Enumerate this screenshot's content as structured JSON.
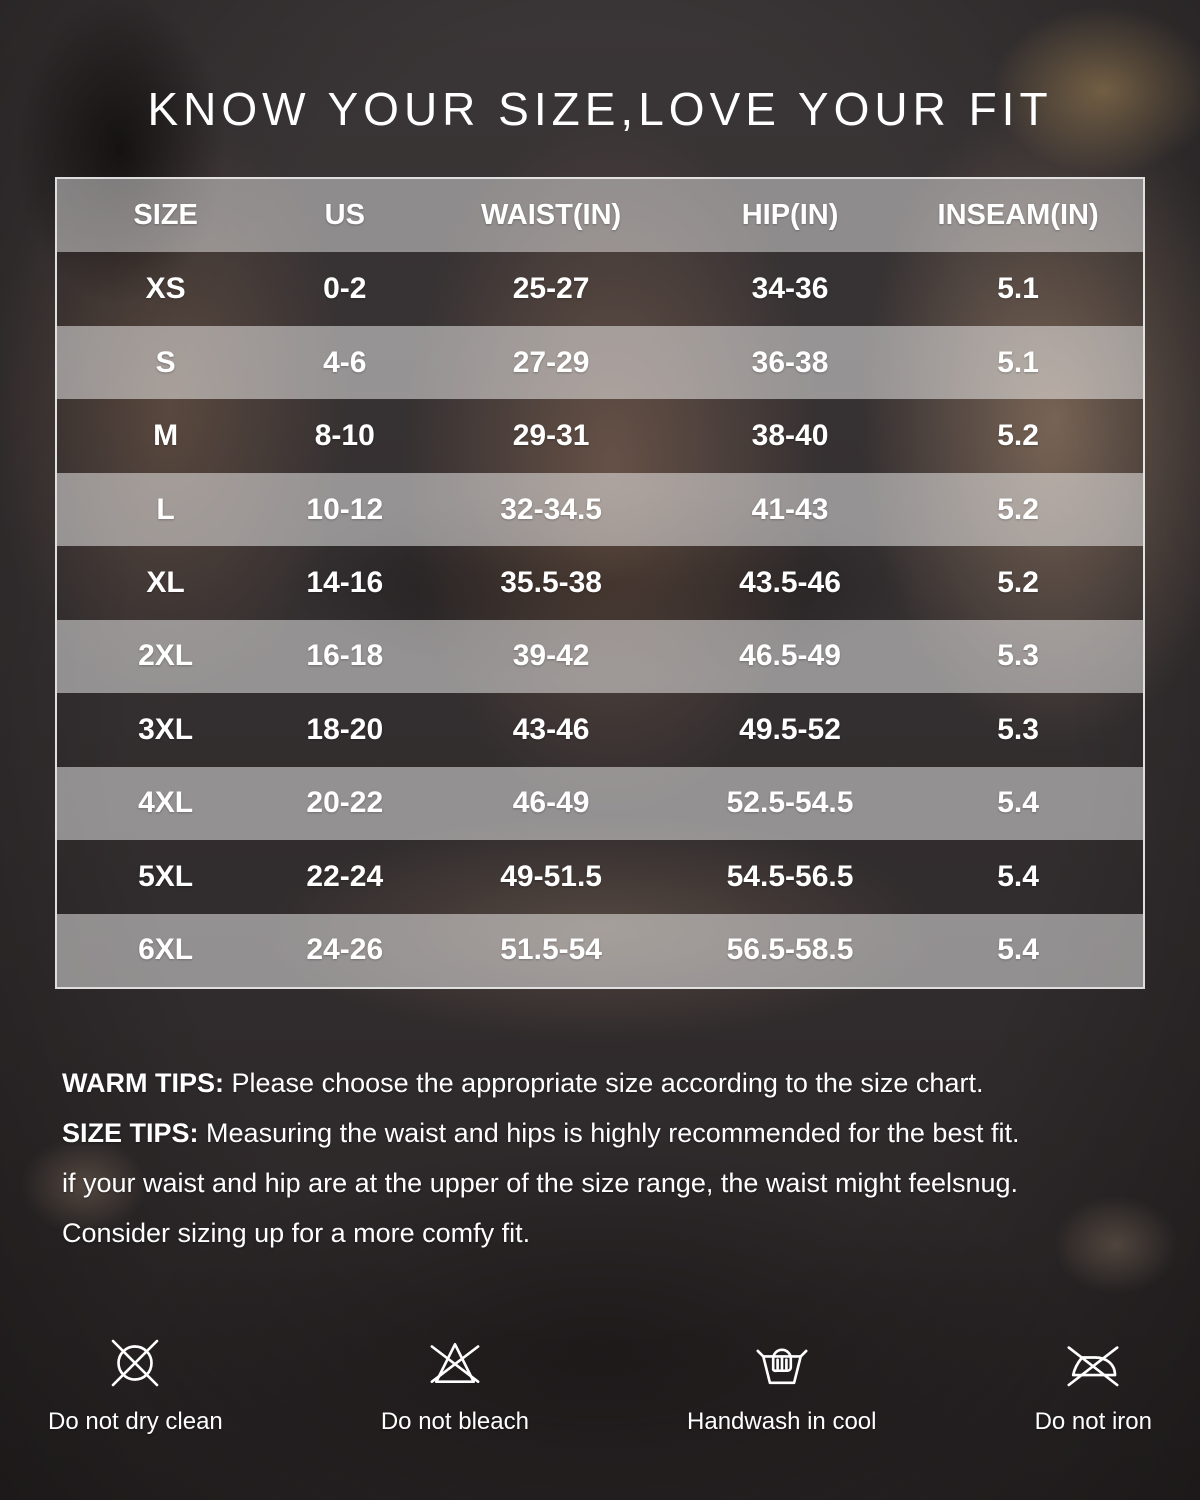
{
  "header": {
    "title": "KNOW YOUR SIZE,LOVE YOUR FIT"
  },
  "size_chart": {
    "columns": [
      "SIZE",
      "US",
      "WAIST(IN)",
      "HIP(IN)",
      "INSEAM(IN)"
    ],
    "rows": [
      [
        "XS",
        "0-2",
        "25-27",
        "34-36",
        "5.1"
      ],
      [
        "S",
        "4-6",
        "27-29",
        "36-38",
        "5.1"
      ],
      [
        "M",
        "8-10",
        "29-31",
        "38-40",
        "5.2"
      ],
      [
        "L",
        "10-12",
        "32-34.5",
        "41-43",
        "5.2"
      ],
      [
        "XL",
        "14-16",
        "35.5-38",
        "43.5-46",
        "5.2"
      ],
      [
        "2XL",
        "16-18",
        "39-42",
        "46.5-49",
        "5.3"
      ],
      [
        "3XL",
        "18-20",
        "43-46",
        "49.5-52",
        "5.3"
      ],
      [
        "4XL",
        "20-22",
        "46-49",
        "52.5-54.5",
        "5.4"
      ],
      [
        "5XL",
        "22-24",
        "49-51.5",
        "54.5-56.5",
        "5.4"
      ],
      [
        "6XL",
        "24-26",
        "51.5-54",
        "56.5-58.5",
        "5.4"
      ]
    ]
  },
  "chart_data": {
    "type": "table",
    "title": "KNOW YOUR SIZE,LOVE YOUR FIT",
    "columns": [
      "SIZE",
      "US",
      "WAIST(IN)",
      "HIP(IN)",
      "INSEAM(IN)"
    ],
    "rows": [
      [
        "XS",
        "0-2",
        "25-27",
        "34-36",
        "5.1"
      ],
      [
        "S",
        "4-6",
        "27-29",
        "36-38",
        "5.1"
      ],
      [
        "M",
        "8-10",
        "29-31",
        "38-40",
        "5.2"
      ],
      [
        "L",
        "10-12",
        "32-34.5",
        "41-43",
        "5.2"
      ],
      [
        "XL",
        "14-16",
        "35.5-38",
        "43.5-46",
        "5.2"
      ],
      [
        "2XL",
        "16-18",
        "39-42",
        "46.5-49",
        "5.3"
      ],
      [
        "3XL",
        "18-20",
        "43-46",
        "49.5-52",
        "5.3"
      ],
      [
        "4XL",
        "20-22",
        "46-49",
        "52.5-54.5",
        "5.4"
      ],
      [
        "5XL",
        "22-24",
        "49-51.5",
        "54.5-56.5",
        "5.4"
      ],
      [
        "6XL",
        "24-26",
        "51.5-54",
        "56.5-58.5",
        "5.4"
      ]
    ]
  },
  "tips": {
    "warm_label": "WARM TIPS:",
    "warm_text": "Please choose the appropriate size according to the size chart.",
    "size_label": "SIZE TIPS:",
    "size_text": "Measuring the waist and hips is highly recommended for the best fit.",
    "line3": "if your waist and hip are at the upper of the size range, the waist might feelsnug.",
    "line4": "Consider sizing up for a more comfy fit."
  },
  "care": {
    "items": [
      {
        "icon": "do-not-dry-clean-icon",
        "label": "Do not dry clean"
      },
      {
        "icon": "do-not-bleach-icon",
        "label": "Do not bleach"
      },
      {
        "icon": "handwash-icon",
        "label": "Handwash in cool"
      },
      {
        "icon": "do-not-iron-icon",
        "label": "Do not iron"
      }
    ]
  },
  "colors": {
    "text": "#ffffff",
    "row_band": "#a9a3a0",
    "table_border": "#f2f0ef",
    "background": "#353031"
  }
}
